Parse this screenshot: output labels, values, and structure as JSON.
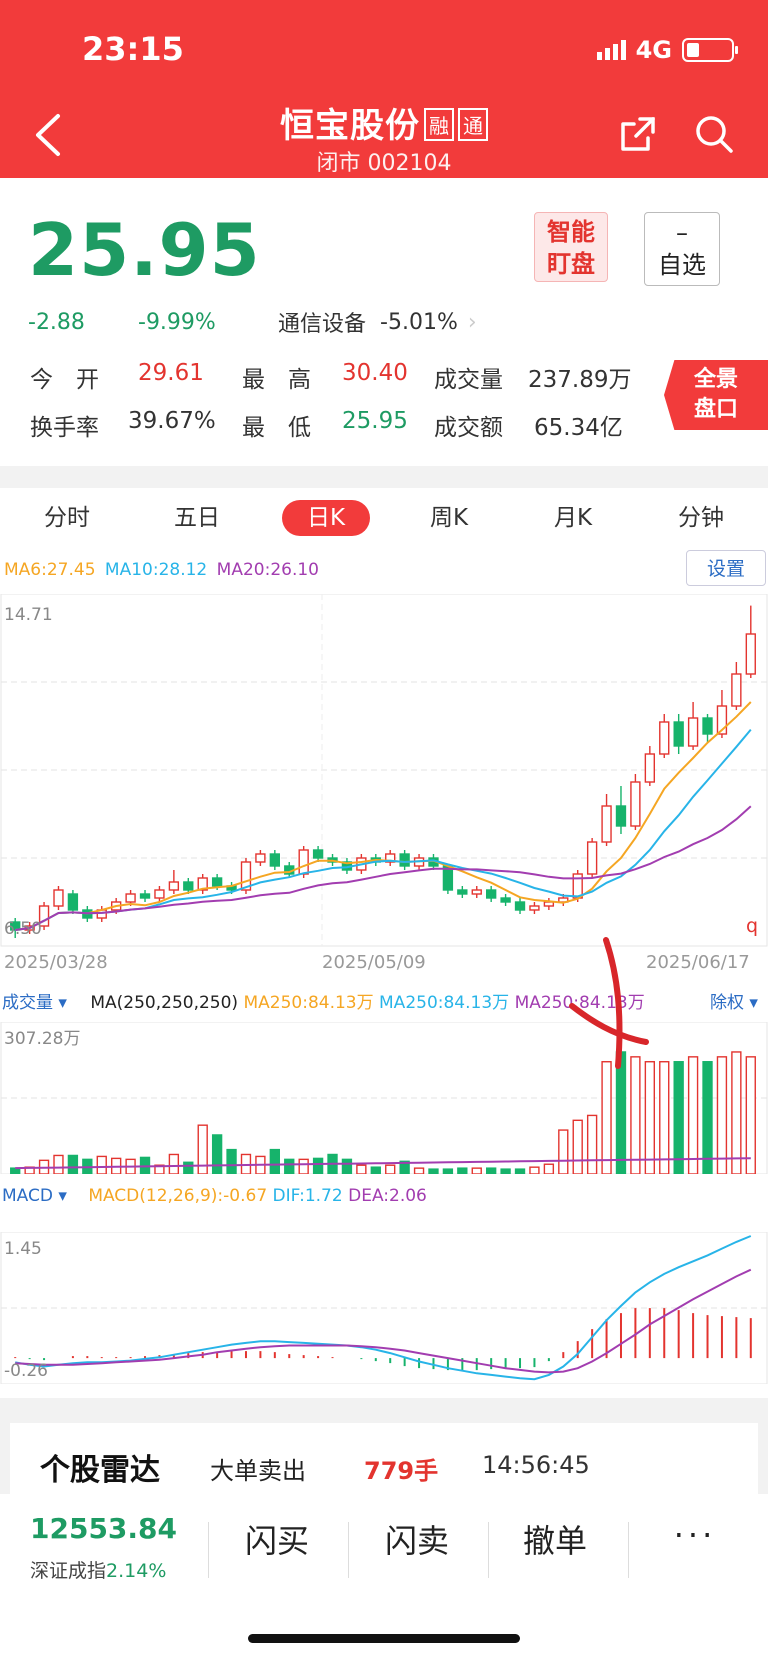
{
  "status_bar": {
    "time": "23:15",
    "network": "4G"
  },
  "header": {
    "name": "恒宝股份",
    "tag1": "融",
    "tag2": "通",
    "subtitle": "闭市 002104"
  },
  "quote": {
    "price": "25.95",
    "change": "-2.88",
    "change_pct": "-9.99%",
    "sector": "通信设备",
    "sector_pct": "-5.01%",
    "open_label": "今　开",
    "open": "29.61",
    "high_label": "最　高",
    "high": "30.40",
    "volume_label": "成交量",
    "volume": "237.89万",
    "turnover_label": "换手率",
    "turnover": "39.67%",
    "low_label": "最　低",
    "low": "25.95",
    "amount_label": "成交额",
    "amount": "65.34亿",
    "smart_line1": "智能",
    "smart_line2": "盯盘",
    "watch_line1": "–",
    "watch_line2": "自选",
    "full_line1": "全景",
    "full_line2": "盘口"
  },
  "tabs": [
    "分时",
    "五日",
    "日K",
    "周K",
    "月K",
    "分钟"
  ],
  "active_tab": "日K",
  "ma_legend": {
    "ma6": "MA6:27.45",
    "ma10": "MA10:28.12",
    "ma20": "MA20:26.10",
    "settings": "设置"
  },
  "kline": {
    "y_top_label": "14.71",
    "y_bottom_label": "6.50",
    "corner_label": "q",
    "dates": [
      "2025/03/28",
      "2025/05/09",
      "2025/06/17"
    ]
  },
  "volume_legend": {
    "title": "成交量",
    "ma": "MA(250,250,250)",
    "ma1": "MA250:84.13万",
    "ma2": "MA250:84.13万",
    "ma3": "MA250:84.13万",
    "right": "除权",
    "y_top": "307.28万"
  },
  "macd_legend": {
    "title": "MACD",
    "macd": "MACD(12,26,9):-0.67",
    "dif": "DIF:1.72",
    "dea": "DEA:2.06",
    "y_top": "1.45",
    "y_bottom": "-0.26"
  },
  "radar": {
    "title": "个股雷达",
    "event": "大单卖出",
    "qty": "779手",
    "time": "14:56:45"
  },
  "bottom": {
    "index_value": "12553.84",
    "index_name": "深证成指",
    "index_pct": "2.14%",
    "buy": "闪买",
    "sell": "闪卖",
    "cancel": "撤单",
    "more": "···"
  },
  "colors": {
    "up": "#e3342f",
    "down": "#16b36b",
    "ma6": "#f5a623",
    "ma10": "#28b4e8",
    "ma20": "#a23db0",
    "header": "#f23b3b"
  },
  "chart_data": {
    "type": "candlestick",
    "candles": [
      [
        6.8,
        6.6,
        6.9,
        6.4
      ],
      [
        6.6,
        6.7,
        6.8,
        6.5
      ],
      [
        6.7,
        7.2,
        7.3,
        6.6
      ],
      [
        7.2,
        7.6,
        7.7,
        7.1
      ],
      [
        7.5,
        7.1,
        7.6,
        7.0
      ],
      [
        7.1,
        6.9,
        7.2,
        6.8
      ],
      [
        6.9,
        7.1,
        7.2,
        6.8
      ],
      [
        7.1,
        7.3,
        7.4,
        7.0
      ],
      [
        7.3,
        7.5,
        7.6,
        7.2
      ],
      [
        7.5,
        7.4,
        7.6,
        7.3
      ],
      [
        7.4,
        7.6,
        7.7,
        7.3
      ],
      [
        7.6,
        7.8,
        8.1,
        7.5
      ],
      [
        7.8,
        7.6,
        7.9,
        7.5
      ],
      [
        7.6,
        7.9,
        8.0,
        7.5
      ],
      [
        7.9,
        7.7,
        8.0,
        7.6
      ],
      [
        7.7,
        7.6,
        7.8,
        7.5
      ],
      [
        7.6,
        8.3,
        8.4,
        7.5
      ],
      [
        8.3,
        8.5,
        8.6,
        8.2
      ],
      [
        8.5,
        8.2,
        8.6,
        8.1
      ],
      [
        8.2,
        8.0,
        8.3,
        7.9
      ],
      [
        8.0,
        8.6,
        8.7,
        7.9
      ],
      [
        8.6,
        8.4,
        8.7,
        8.3
      ],
      [
        8.4,
        8.3,
        8.5,
        8.2
      ],
      [
        8.3,
        8.1,
        8.4,
        8.0
      ],
      [
        8.1,
        8.4,
        8.5,
        8.0
      ],
      [
        8.4,
        8.3,
        8.5,
        8.2
      ],
      [
        8.3,
        8.5,
        8.6,
        8.2
      ],
      [
        8.5,
        8.2,
        8.6,
        8.1
      ],
      [
        8.2,
        8.4,
        8.5,
        8.1
      ],
      [
        8.4,
        8.2,
        8.5,
        8.1
      ],
      [
        8.2,
        7.6,
        8.2,
        7.5
      ],
      [
        7.6,
        7.5,
        7.7,
        7.4
      ],
      [
        7.5,
        7.6,
        7.7,
        7.4
      ],
      [
        7.6,
        7.4,
        7.7,
        7.3
      ],
      [
        7.4,
        7.3,
        7.5,
        7.2
      ],
      [
        7.3,
        7.1,
        7.4,
        7.0
      ],
      [
        7.1,
        7.2,
        7.3,
        7.0
      ],
      [
        7.2,
        7.3,
        7.4,
        7.1
      ],
      [
        7.3,
        7.4,
        7.5,
        7.2
      ],
      [
        7.4,
        8.0,
        8.1,
        7.3
      ],
      [
        8.0,
        8.8,
        8.9,
        7.9
      ],
      [
        8.8,
        9.7,
        10.0,
        8.7
      ],
      [
        9.7,
        9.2,
        10.2,
        9.0
      ],
      [
        9.2,
        10.3,
        10.5,
        9.1
      ],
      [
        10.3,
        11.0,
        11.2,
        10.2
      ],
      [
        11.0,
        11.8,
        12.0,
        10.9
      ],
      [
        11.8,
        11.2,
        12.0,
        11.0
      ],
      [
        11.2,
        11.9,
        12.3,
        11.1
      ],
      [
        11.9,
        11.5,
        12.0,
        11.3
      ],
      [
        11.5,
        12.2,
        12.6,
        11.4
      ],
      [
        12.2,
        13.0,
        13.3,
        12.1
      ],
      [
        13.0,
        14.0,
        14.71,
        12.9
      ]
    ],
    "volume": [
      12,
      14,
      28,
      38,
      38,
      30,
      36,
      32,
      30,
      34,
      18,
      40,
      24,
      100,
      80,
      50,
      40,
      36,
      50,
      30,
      30,
      32,
      40,
      30,
      18,
      14,
      18,
      26,
      12,
      10,
      10,
      12,
      12,
      12,
      10,
      10,
      14,
      20,
      90,
      110,
      120,
      230,
      250,
      240,
      230,
      230,
      230,
      240,
      230,
      240,
      250,
      240
    ],
    "volume_ymax": 307.28,
    "macd_dif": [
      -0.05,
      -0.08,
      -0.1,
      -0.08,
      -0.06,
      -0.05,
      -0.05,
      -0.04,
      -0.03,
      -0.01,
      0.01,
      0.04,
      0.07,
      0.1,
      0.13,
      0.16,
      0.18,
      0.2,
      0.2,
      0.19,
      0.18,
      0.17,
      0.16,
      0.15,
      0.13,
      0.1,
      0.06,
      0.01,
      -0.04,
      -0.08,
      -0.12,
      -0.15,
      -0.18,
      -0.2,
      -0.22,
      -0.24,
      -0.25,
      -0.2,
      -0.1,
      0.05,
      0.25,
      0.45,
      0.62,
      0.78,
      0.9,
      1.0,
      1.08,
      1.15,
      1.22,
      1.3,
      1.38,
      1.45
    ],
    "macd_dea": [
      -0.06,
      -0.07,
      -0.08,
      -0.08,
      -0.08,
      -0.07,
      -0.06,
      -0.05,
      -0.04,
      -0.03,
      -0.02,
      0.0,
      0.02,
      0.04,
      0.07,
      0.09,
      0.11,
      0.13,
      0.14,
      0.15,
      0.15,
      0.15,
      0.15,
      0.15,
      0.14,
      0.13,
      0.11,
      0.09,
      0.06,
      0.03,
      0.0,
      -0.03,
      -0.06,
      -0.09,
      -0.12,
      -0.14,
      -0.16,
      -0.17,
      -0.16,
      -0.12,
      -0.04,
      0.06,
      0.17,
      0.28,
      0.4,
      0.5,
      0.6,
      0.7,
      0.79,
      0.88,
      0.97,
      1.05
    ],
    "macd_ylim": [
      -0.26,
      1.45
    ]
  }
}
